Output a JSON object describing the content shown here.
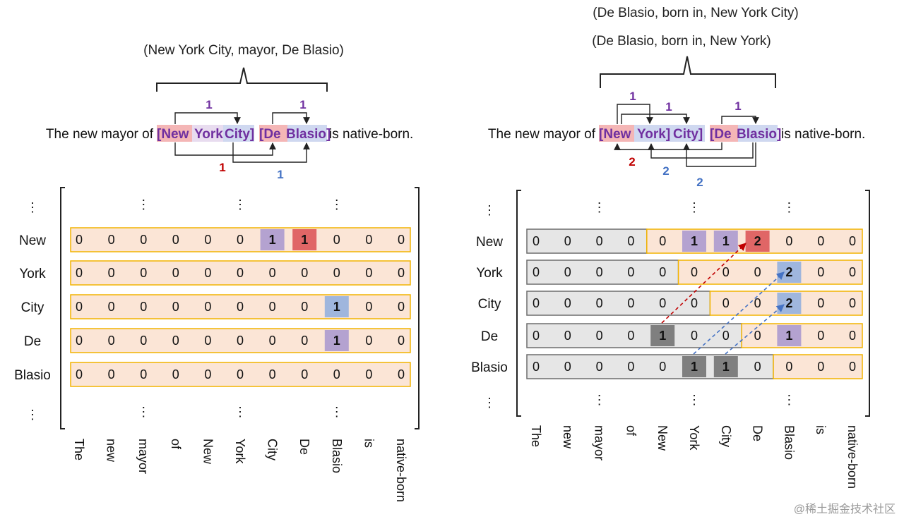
{
  "left": {
    "triple": "(New York City, mayor, De Blasio)",
    "sentence_prefix": "The new mayor of ",
    "sentence_suffix": " is native-born.",
    "entity_tokens": [
      "[New",
      "York",
      "City]",
      "[De",
      "Blasio]"
    ],
    "link_labels": [
      "1",
      "1",
      "1",
      "1"
    ],
    "row_labels": [
      "New",
      "York",
      "City",
      "De",
      "Blasio"
    ],
    "col_labels": [
      "The",
      "new",
      "mayor",
      "of",
      "New",
      "York",
      "City",
      "De",
      "Blasio",
      "is",
      "native-born"
    ],
    "grid": [
      [
        "0",
        "0",
        "0",
        "0",
        "0",
        "0",
        "1",
        "1",
        "0",
        "0",
        "0"
      ],
      [
        "0",
        "0",
        "0",
        "0",
        "0",
        "0",
        "0",
        "0",
        "0",
        "0",
        "0"
      ],
      [
        "0",
        "0",
        "0",
        "0",
        "0",
        "0",
        "0",
        "0",
        "1",
        "0",
        "0"
      ],
      [
        "0",
        "0",
        "0",
        "0",
        "0",
        "0",
        "0",
        "0",
        "1",
        "0",
        "0"
      ],
      [
        "0",
        "0",
        "0",
        "0",
        "0",
        "0",
        "0",
        "0",
        "0",
        "0",
        "0"
      ]
    ],
    "dots": "⋮"
  },
  "right": {
    "triples": [
      "(De Blasio, born in, New York City)",
      "(De Blasio, born in, New York)"
    ],
    "sentence_prefix": "The new mayor of ",
    "sentence_suffix": " is native-born.",
    "entity_tokens": [
      "[New",
      "York]",
      "City]",
      "[De",
      "Blasio]"
    ],
    "link_labels": [
      "1",
      "1",
      "1",
      "2",
      "2",
      "2"
    ],
    "row_labels": [
      "New",
      "York",
      "City",
      "De",
      "Blasio"
    ],
    "col_labels": [
      "The",
      "new",
      "mayor",
      "of",
      "New",
      "York",
      "City",
      "De",
      "Blasio",
      "is",
      "native-born"
    ],
    "grid": [
      [
        "0",
        "0",
        "0",
        "0",
        "0",
        "1",
        "1",
        "2",
        "0",
        "0",
        "0"
      ],
      [
        "0",
        "0",
        "0",
        "0",
        "0",
        "0",
        "0",
        "0",
        "2",
        "0",
        "0"
      ],
      [
        "0",
        "0",
        "0",
        "0",
        "0",
        "0",
        "0",
        "0",
        "2",
        "0",
        "0"
      ],
      [
        "0",
        "0",
        "0",
        "0",
        "1",
        "0",
        "0",
        "0",
        "1",
        "0",
        "0"
      ],
      [
        "0",
        "0",
        "0",
        "0",
        "0",
        "1",
        "1",
        "0",
        "0",
        "0",
        "0"
      ]
    ],
    "dots": "⋮"
  },
  "colors": {
    "orange_fill": "#fbe5d6",
    "orange_border": "#f2b400",
    "gray_fill": "#e6e6e6",
    "gray_border": "#6d6d6d",
    "purple": "#7030a0",
    "red": "#c00000",
    "blue": "#4472c4",
    "cell_purple": "#b4a2d0",
    "cell_red": "#e06666",
    "cell_blue": "#9fb6dd",
    "cell_dark": "#7f7f7f",
    "hl_red": "#f4b6b6",
    "hl_blue": "#cfd8f0"
  },
  "watermark": "@稀土掘金技术社区"
}
